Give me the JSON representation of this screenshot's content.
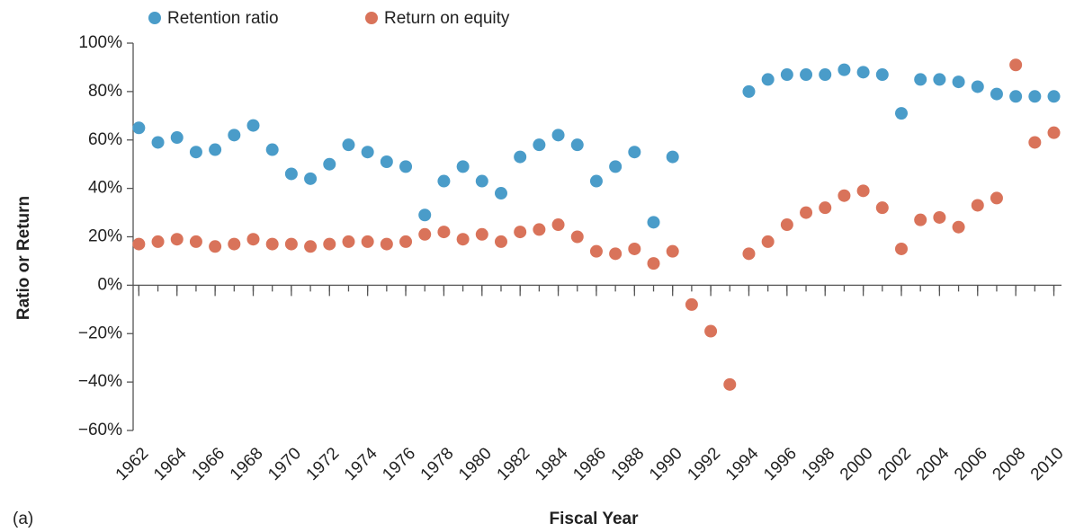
{
  "chart_data": {
    "type": "scatter",
    "annotation": "(a)",
    "xlabel": "Fiscal Year",
    "ylabel": "Ratio or Return",
    "x": [
      1962,
      1963,
      1964,
      1965,
      1966,
      1967,
      1968,
      1969,
      1970,
      1971,
      1972,
      1973,
      1974,
      1975,
      1976,
      1977,
      1978,
      1979,
      1980,
      1981,
      1982,
      1983,
      1984,
      1985,
      1986,
      1987,
      1988,
      1989,
      1990,
      1991,
      1992,
      1993,
      1994,
      1995,
      1996,
      1997,
      1998,
      1999,
      2000,
      2001,
      2002,
      2003,
      2004,
      2005,
      2006,
      2007,
      2008,
      2009,
      2010
    ],
    "series": [
      {
        "name": "Retention ratio",
        "color": "#4a9cc9",
        "values": [
          65,
          59,
          61,
          55,
          56,
          62,
          66,
          56,
          46,
          44,
          50,
          58,
          55,
          51,
          49,
          29,
          43,
          49,
          43,
          38,
          53,
          58,
          62,
          58,
          43,
          49,
          55,
          26,
          53,
          null,
          null,
          null,
          80,
          85,
          87,
          87,
          87,
          89,
          88,
          87,
          71,
          85,
          85,
          84,
          82,
          79,
          78,
          78,
          78
        ]
      },
      {
        "name": "Return on equity",
        "color": "#d9735a",
        "values": [
          17,
          18,
          19,
          18,
          16,
          17,
          19,
          17,
          17,
          16,
          17,
          18,
          18,
          17,
          18,
          21,
          22,
          19,
          21,
          18,
          22,
          23,
          25,
          20,
          14,
          13,
          15,
          9,
          14,
          -8,
          -19,
          -41,
          13,
          18,
          25,
          30,
          32,
          37,
          39,
          32,
          15,
          27,
          28,
          24,
          33,
          36,
          91,
          59,
          63
        ]
      }
    ],
    "xlim": [
      1961.7,
      2010.4
    ],
    "xticks": [
      1962,
      1964,
      1966,
      1968,
      1970,
      1972,
      1974,
      1976,
      1978,
      1980,
      1982,
      1984,
      1986,
      1988,
      1990,
      1992,
      1994,
      1996,
      1998,
      2000,
      2002,
      2004,
      2006,
      2008,
      2010
    ],
    "ylim": [
      -60,
      100
    ],
    "yticks": [
      {
        "value": -60,
        "label": "−60%"
      },
      {
        "value": -40,
        "label": "−40%"
      },
      {
        "value": -20,
        "label": "−20%"
      },
      {
        "value": 0,
        "label": "0%"
      },
      {
        "value": 20,
        "label": "20%"
      },
      {
        "value": 40,
        "label": "40%"
      },
      {
        "value": 60,
        "label": "60%"
      },
      {
        "value": 80,
        "label": "80%"
      },
      {
        "value": 100,
        "label": "100%"
      }
    ],
    "legend": "top-left"
  }
}
